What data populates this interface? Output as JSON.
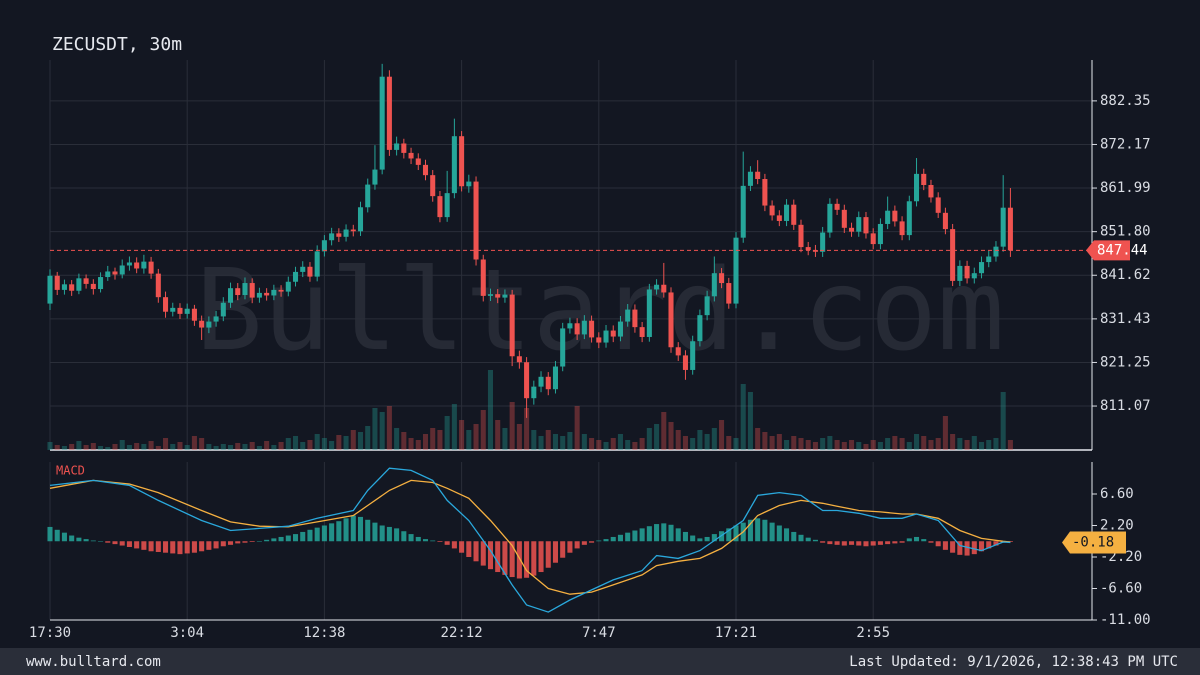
{
  "chart_data": {
    "type": "candlestick",
    "title": "ZECUSDT, 30m",
    "watermark": "Bulltard.com",
    "up_color": "#26a69a",
    "down_color": "#ef5350",
    "grid": true,
    "open": [
      835.0,
      841.5,
      838.2,
      839.5,
      838.0,
      840.9,
      839.6,
      838.4,
      841.2,
      842.5,
      841.8,
      843.9,
      844.6,
      843.2,
      844.8,
      842.0,
      836.5,
      833.1,
      834.0,
      832.6,
      833.8,
      831.0,
      829.4,
      830.8,
      832.0,
      835.2,
      838.6,
      837.0,
      839.8,
      836.4,
      837.5,
      836.9,
      838.2,
      837.8,
      840.1,
      842.4,
      843.6,
      841.3,
      847.2,
      849.8,
      851.4,
      850.6,
      852.3,
      851.9,
      857.5,
      862.8,
      866.3,
      888.0,
      870.9,
      872.4,
      870.2,
      868.9,
      867.4,
      865.0,
      860.1,
      855.2,
      860.8,
      874.1,
      862.4,
      863.5,
      845.3,
      836.8,
      837.2,
      836.4,
      837.1,
      822.7,
      821.3,
      812.9,
      815.6,
      817.9,
      815.0,
      820.3,
      829.2,
      830.4,
      827.8,
      831.0,
      827.1,
      825.9,
      828.7,
      827.3,
      830.8,
      833.6,
      829.5,
      827.2,
      838.3,
      839.4,
      837.6,
      824.8,
      822.9,
      819.5,
      826.2,
      832.3,
      836.7,
      842.1,
      839.8,
      835.0,
      850.4,
      862.5,
      865.8,
      864.1,
      857.9,
      855.6,
      854.3,
      858.1,
      853.4,
      848.2,
      847.5,
      847.1,
      851.6,
      858.3,
      856.9,
      852.7,
      851.8,
      855.2,
      851.4,
      848.9,
      853.6,
      856.7,
      854.2,
      851.0,
      858.9,
      865.3,
      862.7,
      859.8,
      856.2,
      852.4,
      840.3,
      843.8,
      840.9,
      842.1,
      844.7,
      846.0,
      848.3,
      857.4
    ],
    "high": [
      843.0,
      842.4,
      840.6,
      840.5,
      842.0,
      841.8,
      840.7,
      842.3,
      843.8,
      843.4,
      845.3,
      846.0,
      845.8,
      846.4,
      845.9,
      843.1,
      837.8,
      835.2,
      835.1,
      835.0,
      834.7,
      832.2,
      832.0,
      833.3,
      836.5,
      839.9,
      839.8,
      841.1,
      840.9,
      838.7,
      838.6,
      839.4,
      839.3,
      841.3,
      843.6,
      844.9,
      844.7,
      848.6,
      851.0,
      852.7,
      852.6,
      853.5,
      853.4,
      858.8,
      864.2,
      872.0,
      891.0,
      889.5,
      874.0,
      873.5,
      871.4,
      870.1,
      868.6,
      866.2,
      861.3,
      866.0,
      878.2,
      875.3,
      865.1,
      864.7,
      846.4,
      838.5,
      838.4,
      838.3,
      838.2,
      824.0,
      822.5,
      817.0,
      819.2,
      819.0,
      821.6,
      830.5,
      831.7,
      831.6,
      832.3,
      832.2,
      828.3,
      830.0,
      829.9,
      832.1,
      834.9,
      834.8,
      830.7,
      839.6,
      840.7,
      844.5,
      838.8,
      826.0,
      824.1,
      827.5,
      833.6,
      838.0,
      846.0,
      843.3,
      841.0,
      851.7,
      870.5,
      867.1,
      868.5,
      865.3,
      859.1,
      856.8,
      859.4,
      859.3,
      854.6,
      849.4,
      848.7,
      852.9,
      859.6,
      859.5,
      858.1,
      853.9,
      856.5,
      856.4,
      852.6,
      854.9,
      860.0,
      857.9,
      855.4,
      860.2,
      869.0,
      866.5,
      863.9,
      861.0,
      857.4,
      853.6,
      845.1,
      845.0,
      843.4,
      846.0,
      847.3,
      849.6,
      865.0,
      862.0
    ],
    "low": [
      833.5,
      837.0,
      837.1,
      836.8,
      837.2,
      838.5,
      837.1,
      837.6,
      840.3,
      840.6,
      840.9,
      842.7,
      842.1,
      842.0,
      840.8,
      835.2,
      831.7,
      832.0,
      831.4,
      831.5,
      829.8,
      826.5,
      828.1,
      829.6,
      830.9,
      834.0,
      835.8,
      836.0,
      835.1,
      835.2,
      835.7,
      835.8,
      836.6,
      836.7,
      839.0,
      841.2,
      840.1,
      840.2,
      846.0,
      848.6,
      849.4,
      849.5,
      850.7,
      850.8,
      856.3,
      861.6,
      865.2,
      869.5,
      869.6,
      868.9,
      867.6,
      866.2,
      863.8,
      858.8,
      854.0,
      854.1,
      859.6,
      861.2,
      860.9,
      843.9,
      835.5,
      835.6,
      835.1,
      835.2,
      820.4,
      819.8,
      808.3,
      811.4,
      814.3,
      813.6,
      814.0,
      819.2,
      828.0,
      826.5,
      826.7,
      825.9,
      824.6,
      824.7,
      826.0,
      826.2,
      829.6,
      828.2,
      826.0,
      826.1,
      837.1,
      836.4,
      823.5,
      821.6,
      817.2,
      818.4,
      825.0,
      831.1,
      835.5,
      838.6,
      833.8,
      833.9,
      849.2,
      861.3,
      862.9,
      856.6,
      854.4,
      853.1,
      853.1,
      852.2,
      847.0,
      846.3,
      845.9,
      845.9,
      850.4,
      855.7,
      851.5,
      850.6,
      850.6,
      850.2,
      847.7,
      847.7,
      852.4,
      853.0,
      849.8,
      849.8,
      857.7,
      861.5,
      858.6,
      855.0,
      851.2,
      839.1,
      839.1,
      839.7,
      839.7,
      840.9,
      843.5,
      844.8,
      847.1,
      845.9
    ],
    "close": [
      841.5,
      838.2,
      839.5,
      838.0,
      840.9,
      839.6,
      838.4,
      841.2,
      842.5,
      841.8,
      843.9,
      844.6,
      843.2,
      844.8,
      842.0,
      836.5,
      833.1,
      834.0,
      832.6,
      833.8,
      831.0,
      829.4,
      830.8,
      832.0,
      835.2,
      838.6,
      837.0,
      839.8,
      836.4,
      837.5,
      836.9,
      838.2,
      837.8,
      840.1,
      842.4,
      843.6,
      841.3,
      847.2,
      849.8,
      851.4,
      850.6,
      852.3,
      851.9,
      857.5,
      862.8,
      866.3,
      888.0,
      870.9,
      872.4,
      870.2,
      868.9,
      867.4,
      865.0,
      860.1,
      855.2,
      860.8,
      874.1,
      862.4,
      863.5,
      845.3,
      836.8,
      837.2,
      836.4,
      837.1,
      822.7,
      821.3,
      812.9,
      815.6,
      817.9,
      815.0,
      820.3,
      829.2,
      830.4,
      827.8,
      831.0,
      827.1,
      825.9,
      828.7,
      827.3,
      830.8,
      833.6,
      829.5,
      827.2,
      838.3,
      839.4,
      837.6,
      824.8,
      822.9,
      819.5,
      826.2,
      832.3,
      836.7,
      842.1,
      839.8,
      835.0,
      850.4,
      862.5,
      865.8,
      864.1,
      857.9,
      855.6,
      854.3,
      858.1,
      853.4,
      848.2,
      847.5,
      847.1,
      851.6,
      858.3,
      856.9,
      852.7,
      851.8,
      855.2,
      851.4,
      848.9,
      853.6,
      856.7,
      854.2,
      851.0,
      858.9,
      865.3,
      862.7,
      859.8,
      856.2,
      852.4,
      840.3,
      843.8,
      840.9,
      842.1,
      844.7,
      846.0,
      848.3,
      857.4,
      847.44
    ],
    "volume": [
      8,
      5,
      4,
      6,
      9,
      5,
      7,
      4,
      3,
      6,
      10,
      5,
      7,
      6,
      9,
      4,
      12,
      6,
      8,
      5,
      14,
      12,
      6,
      4,
      6,
      5,
      7,
      6,
      8,
      4,
      9,
      5,
      8,
      12,
      14,
      8,
      10,
      16,
      12,
      9,
      15,
      14,
      20,
      18,
      24,
      42,
      38,
      44,
      22,
      18,
      12,
      10,
      16,
      22,
      20,
      34,
      46,
      30,
      20,
      26,
      40,
      80,
      30,
      22,
      48,
      26,
      42,
      20,
      14,
      20,
      16,
      14,
      18,
      44,
      16,
      12,
      10,
      8,
      12,
      16,
      10,
      8,
      12,
      22,
      26,
      38,
      28,
      20,
      14,
      12,
      20,
      16,
      22,
      30,
      14,
      12,
      66,
      58,
      22,
      18,
      14,
      16,
      10,
      14,
      12,
      10,
      8,
      12,
      14,
      10,
      8,
      10,
      8,
      6,
      10,
      8,
      12,
      14,
      12,
      8,
      16,
      14,
      10,
      12,
      34,
      16,
      12,
      10,
      14,
      8,
      10,
      12,
      58,
      10
    ],
    "xlim": [
      0,
      144.3
    ],
    "xticks": [
      {
        "value": 0,
        "label": "17:30"
      },
      {
        "value": 19,
        "label": "3:04"
      },
      {
        "value": 38,
        "label": "12:38"
      },
      {
        "value": 57,
        "label": "22:12"
      },
      {
        "value": 76,
        "label": "7:47"
      },
      {
        "value": 95,
        "label": "17:21"
      },
      {
        "value": 114,
        "label": "2:55"
      }
    ],
    "ylim": [
      800.8,
      891.9
    ],
    "yticks": [
      811.07,
      821.25,
      831.43,
      841.62,
      {
        "value": 851.8,
        "label": "851.80"
      },
      861.99,
      872.17,
      882.35
    ],
    "indicator": {
      "name": "MACD",
      "macd_color": "#2aa8dc",
      "signal_color": "#f5b041",
      "x": [
        0,
        6,
        11,
        15,
        21,
        25,
        29,
        33,
        37,
        42,
        44,
        47,
        50,
        53,
        55,
        58,
        61,
        64,
        66,
        69,
        72,
        75,
        78,
        82,
        84,
        87,
        90,
        93,
        96,
        98,
        101,
        104,
        107,
        109,
        112,
        115,
        118,
        120,
        123,
        126,
        129,
        132,
        133
      ],
      "macd": [
        7.8,
        8.5,
        7.8,
        5.7,
        2.9,
        1.5,
        1.8,
        2.1,
        3.2,
        4.3,
        7.1,
        10.2,
        9.9,
        8.5,
        5.7,
        2.9,
        -1.3,
        -6.1,
        -8.9,
        -9.9,
        -8.2,
        -6.8,
        -5.4,
        -4.1,
        -2.0,
        -2.4,
        -1.3,
        0.8,
        2.9,
        6.4,
        6.8,
        6.4,
        4.3,
        4.3,
        3.9,
        3.2,
        3.2,
        3.8,
        2.9,
        -0.6,
        -1.3,
        -0.1,
        -0.18
      ],
      "signal": [
        7.4,
        8.5,
        8.0,
        6.8,
        4.3,
        2.7,
        2.1,
        2.0,
        2.7,
        3.6,
        5.0,
        7.1,
        8.5,
        8.2,
        7.4,
        6.0,
        2.9,
        -0.6,
        -4.1,
        -6.6,
        -7.4,
        -7.1,
        -6.1,
        -4.7,
        -3.4,
        -2.8,
        -2.4,
        -1.0,
        1.3,
        3.6,
        5.0,
        5.7,
        5.3,
        4.9,
        4.3,
        4.1,
        3.8,
        3.8,
        3.2,
        1.5,
        0.4,
        0.0,
        -0.1
      ],
      "histogram": [
        2.0,
        1.6,
        1.2,
        0.8,
        0.5,
        0.3,
        0.1,
        0.0,
        -0.2,
        -0.4,
        -0.6,
        -0.8,
        -1.0,
        -1.2,
        -1.4,
        -1.5,
        -1.6,
        -1.7,
        -1.8,
        -1.7,
        -1.6,
        -1.4,
        -1.2,
        -1.0,
        -0.7,
        -0.5,
        -0.3,
        -0.2,
        -0.1,
        0.0,
        0.2,
        0.4,
        0.6,
        0.8,
        1.0,
        1.3,
        1.6,
        1.9,
        2.2,
        2.5,
        2.8,
        3.2,
        3.6,
        3.4,
        3.0,
        2.6,
        2.2,
        2.0,
        1.8,
        1.4,
        1.0,
        0.6,
        0.3,
        0.1,
        -0.1,
        -0.5,
        -1.0,
        -1.6,
        -2.2,
        -2.8,
        -3.4,
        -3.9,
        -4.3,
        -4.7,
        -5.0,
        -5.2,
        -5.1,
        -4.8,
        -4.3,
        -3.7,
        -3.0,
        -2.3,
        -1.6,
        -1.0,
        -0.5,
        -0.2,
        0.1,
        0.3,
        0.6,
        0.9,
        1.2,
        1.5,
        1.8,
        2.1,
        2.4,
        2.5,
        2.3,
        1.8,
        1.3,
        0.8,
        0.4,
        0.6,
        1.0,
        1.4,
        1.8,
        2.2,
        2.6,
        3.0,
        3.2,
        3.0,
        2.6,
        2.2,
        1.8,
        1.3,
        0.9,
        0.5,
        0.2,
        -0.2,
        -0.4,
        -0.5,
        -0.6,
        -0.5,
        -0.6,
        -0.7,
        -0.6,
        -0.5,
        -0.4,
        -0.3,
        -0.2,
        0.4,
        0.6,
        0.3,
        -0.2,
        -0.7,
        -1.2,
        -1.6,
        -1.9,
        -2.0,
        -1.8,
        -1.4,
        -1.0,
        -0.6,
        -0.2,
        -0.1
      ],
      "ylim": [
        -11,
        11.07
      ],
      "yticks": [
        {
          "value": -11,
          "label": "-11.00"
        },
        {
          "value": -6.6,
          "label": "-6.60"
        },
        {
          "value": -2.2,
          "label": "-2.20"
        },
        {
          "value": 2.2,
          "label": "2.20"
        },
        {
          "value": 6.6,
          "label": "6.60"
        }
      ]
    }
  },
  "footer": {
    "site": "www.bulltard.com",
    "updated": "Last Updated: 9/1/2026, 12:38:43 PM UTC"
  }
}
